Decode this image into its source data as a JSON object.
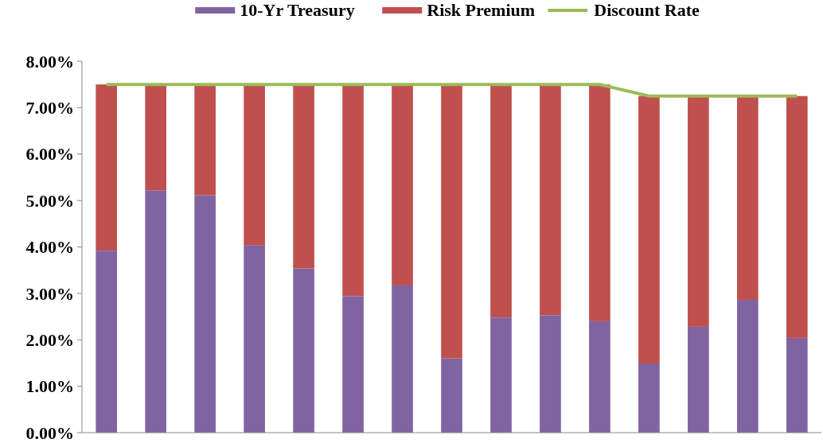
{
  "chart_data": {
    "type": "bar",
    "stacked": true,
    "categories": [
      null,
      null,
      null,
      null,
      null,
      null,
      null,
      null,
      null,
      null,
      null,
      null,
      null,
      null,
      null
    ],
    "series": [
      {
        "name": "10-Yr Treasury",
        "color": "#8064a2",
        "values": [
          3.92,
          5.22,
          5.11,
          4.04,
          3.54,
          2.94,
          3.17,
          1.6,
          2.48,
          2.53,
          2.4,
          1.49,
          2.28,
          2.86,
          2.04
        ]
      },
      {
        "name": "Risk Premium",
        "color": "#c0504d",
        "values": [
          3.58,
          2.28,
          2.39,
          3.46,
          3.96,
          4.56,
          4.33,
          5.9,
          5.02,
          4.97,
          5.1,
          5.76,
          4.97,
          4.39,
          5.21
        ]
      },
      {
        "name": "Discount Rate",
        "type": "line",
        "color": "#9bbb59",
        "values": [
          7.5,
          7.5,
          7.5,
          7.5,
          7.5,
          7.5,
          7.5,
          7.5,
          7.5,
          7.5,
          7.5,
          7.25,
          7.25,
          7.25,
          7.25
        ]
      }
    ],
    "ylim": [
      0,
      8
    ],
    "yticks": [
      {
        "value": 0,
        "label": "0.00%"
      },
      {
        "value": 1,
        "label": "1.00%"
      },
      {
        "value": 2,
        "label": "2.00%"
      },
      {
        "value": 3,
        "label": "3.00%"
      },
      {
        "value": 4,
        "label": "4.00%"
      },
      {
        "value": 5,
        "label": "5.00%"
      },
      {
        "value": 6,
        "label": "6.00%"
      },
      {
        "value": 7,
        "label": "7.00%"
      },
      {
        "value": 8,
        "label": "8.00%"
      }
    ],
    "legend": "top",
    "grid": false,
    "marker": "none"
  }
}
